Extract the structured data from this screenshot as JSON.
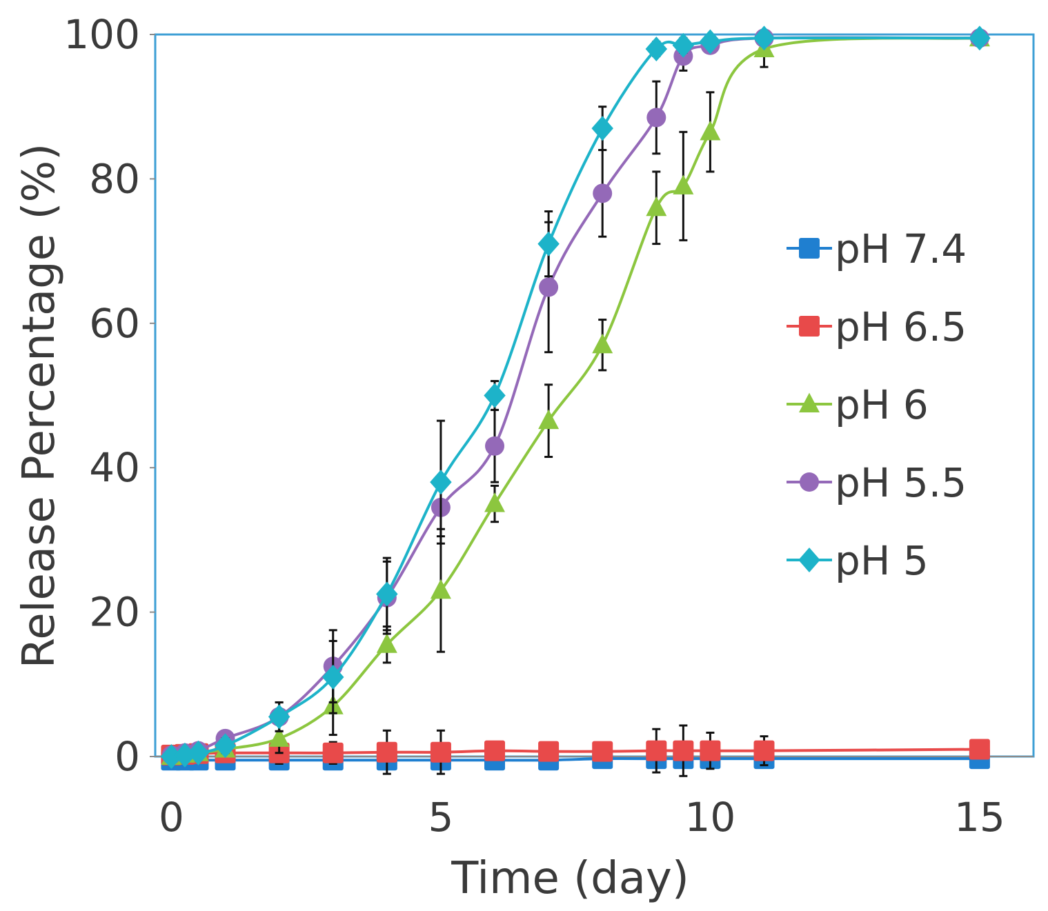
{
  "chart_data": {
    "type": "line",
    "title": "",
    "xlabel": "Time (day)",
    "ylabel": "Release Percentage (%)",
    "xlim": [
      -0.3,
      16
    ],
    "ylim": [
      0,
      100
    ],
    "xticks": [
      0,
      5,
      10,
      15
    ],
    "yticks": [
      0,
      20,
      40,
      60,
      80,
      100
    ],
    "legend_position": "right-middle",
    "frame_color": "#3e9fd5",
    "series": [
      {
        "name": "pH 7.4",
        "color": "#1f7fd0",
        "marker": "square",
        "x": [
          0,
          0.25,
          0.5,
          1,
          2,
          3,
          4,
          5,
          6,
          7,
          8,
          9,
          9.5,
          10,
          11,
          15
        ],
        "y": [
          -0.5,
          -0.5,
          -0.5,
          -0.5,
          -0.5,
          -0.5,
          -0.5,
          -0.5,
          -0.5,
          -0.5,
          -0.3,
          -0.3,
          -0.3,
          -0.3,
          -0.3,
          -0.3
        ],
        "err": [
          0,
          0,
          0,
          0,
          0,
          0,
          0,
          0,
          0,
          0,
          0,
          0,
          0,
          0,
          0,
          0
        ]
      },
      {
        "name": "pH 6.5",
        "color": "#e84a4a",
        "marker": "square",
        "x": [
          0,
          0.25,
          0.5,
          1,
          2,
          3,
          4,
          5,
          6,
          7,
          8,
          9,
          9.5,
          10,
          11,
          15
        ],
        "y": [
          0.2,
          0.3,
          0.4,
          0.5,
          0.5,
          0.5,
          0.6,
          0.6,
          0.8,
          0.7,
          0.7,
          0.8,
          0.8,
          0.8,
          0.8,
          1.0
        ],
        "err": [
          0.3,
          0.3,
          0.3,
          0.5,
          1.5,
          1.5,
          3.0,
          3.0,
          1.0,
          0.5,
          1.0,
          3.0,
          3.5,
          2.5,
          2.0,
          0.5
        ]
      },
      {
        "name": "pH 6",
        "color": "#8cc63f",
        "marker": "triangle",
        "x": [
          0,
          0.25,
          0.5,
          1,
          2,
          3,
          4,
          5,
          6,
          7,
          8,
          9,
          9.5,
          10,
          11,
          15
        ],
        "y": [
          0,
          0.3,
          0.5,
          1.0,
          2.5,
          7.0,
          15.5,
          23.0,
          35.0,
          46.5,
          57.0,
          76.0,
          79.0,
          86.5,
          98.0,
          99.5
        ],
        "err": [
          0.5,
          0.5,
          0.5,
          1.0,
          2.0,
          4.0,
          2.5,
          8.5,
          2.5,
          5.0,
          3.5,
          5.0,
          7.5,
          5.5,
          2.5,
          0.5
        ]
      },
      {
        "name": "pH 5.5",
        "color": "#9469b8",
        "marker": "circle",
        "x": [
          0,
          0.25,
          0.5,
          1,
          2,
          3,
          4,
          5,
          6,
          7,
          8,
          9,
          9.5,
          10,
          11,
          15
        ],
        "y": [
          0.2,
          0.5,
          0.8,
          2.5,
          5.5,
          12.5,
          22.0,
          34.5,
          43.0,
          65.0,
          78.0,
          88.5,
          97.0,
          98.5,
          99.5,
          99.5
        ],
        "err": [
          0.5,
          0.5,
          0.5,
          1.0,
          2.0,
          5.0,
          5.0,
          4.0,
          5.0,
          9.0,
          6.0,
          5.0,
          2.0,
          1.0,
          0.5,
          0.5
        ]
      },
      {
        "name": "pH 5",
        "color": "#1db3c9",
        "marker": "diamond",
        "x": [
          0,
          0.25,
          0.5,
          1,
          2,
          3,
          4,
          5,
          6,
          7,
          8,
          9,
          9.5,
          10,
          11,
          15
        ],
        "y": [
          0,
          0.2,
          0.5,
          1.5,
          5.5,
          11.0,
          22.5,
          38.0,
          50.0,
          71.0,
          87.0,
          98.0,
          98.5,
          99.0,
          99.5,
          99.5
        ],
        "err": [
          0.5,
          0.5,
          0.5,
          1.0,
          2.0,
          5.0,
          5.0,
          8.5,
          2.0,
          4.5,
          3.0,
          1.0,
          1.0,
          0.5,
          0.5,
          0.5
        ]
      }
    ]
  }
}
